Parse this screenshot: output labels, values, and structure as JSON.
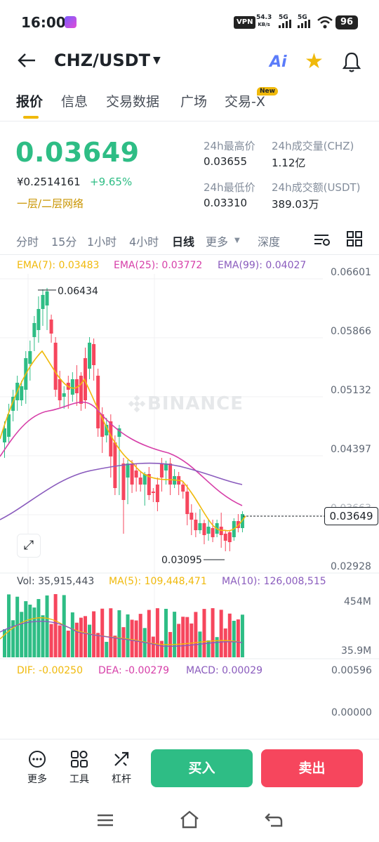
{
  "status_bar": {
    "time": "16:00",
    "vpn": "VPN",
    "speed_value": "54.3",
    "speed_unit": "KB/s",
    "net1": "5G",
    "net2": "5G",
    "battery": "96"
  },
  "header": {
    "pair": "CHZ/USDT",
    "ai_label": "Ai"
  },
  "tabs": [
    {
      "label": "报价",
      "active": true
    },
    {
      "label": "信息"
    },
    {
      "label": "交易数据"
    },
    {
      "label": "广场"
    },
    {
      "label": "交易-X",
      "badge": "New"
    }
  ],
  "price": {
    "last": "0.03649",
    "cny": "¥0.2514161",
    "change": "+9.65%",
    "network": "一层/二层网络"
  },
  "stats": {
    "high_label": "24h最高价",
    "high_value": "0.03655",
    "vol_chz_label": "24h成交量(CHZ)",
    "vol_chz_value": "1.12亿",
    "low_label": "24h最低价",
    "low_value": "0.03310",
    "vol_usdt_label": "24h成交额(USDT)",
    "vol_usdt_value": "389.03万"
  },
  "intervals": [
    "分时",
    "15分",
    "1小时",
    "4小时",
    "日线",
    "更多",
    "深度"
  ],
  "chart": {
    "ema7": "EMA(7): 0.03483",
    "ema25": "EMA(25): 0.03772",
    "ema99": "EMA(99): 0.04027",
    "price_axis": [
      "0.06601",
      "0.05866",
      "0.05132",
      "0.04397",
      "0.03663",
      "0.02928"
    ],
    "current_tag": "0.03649",
    "high_annot": "0.06434",
    "low_annot": "0.03095",
    "watermark": "BINANCE",
    "vol": "Vol: 35,915,443",
    "ma5": "MA(5): 109,448,471",
    "ma10": "MA(10): 126,008,515",
    "vol_axis": [
      "454M",
      "35.9M"
    ],
    "dif": "DIF: -0.00250",
    "dea": "DEA: -0.00279",
    "macd": "MACD: 0.00029",
    "macd_axis": [
      "0.00596",
      "0.00000"
    ],
    "colors": {
      "up": "#2ebd85",
      "down": "#f6465d",
      "ema7": "#f0b90b",
      "ema25": "#d63ea8",
      "ema99": "#8a5bbd"
    }
  },
  "bottom": {
    "more": "更多",
    "tools": "工具",
    "leverage": "杠杆",
    "buy": "买入",
    "sell": "卖出"
  }
}
